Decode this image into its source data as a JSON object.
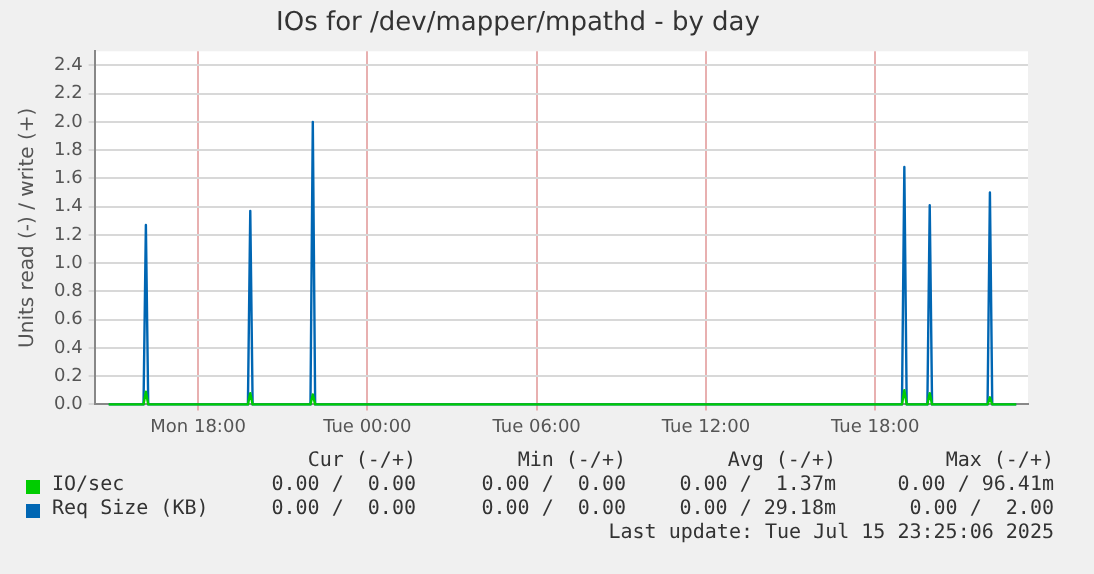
{
  "chart_data": {
    "type": "line",
    "title": "IOs for /dev/mapper/mpathd - by day",
    "ylabel": "Units read (-) / write (+)",
    "x": [
      "2025-07-14T14:50",
      "2025-07-14T16:04",
      "2025-07-14T16:09",
      "2025-07-14T16:14",
      "2025-07-14T19:46",
      "2025-07-14T19:51",
      "2025-07-14T19:56",
      "2025-07-14T21:59",
      "2025-07-14T22:04",
      "2025-07-14T22:09",
      "2025-07-15T18:57",
      "2025-07-15T19:02",
      "2025-07-15T19:07",
      "2025-07-15T19:51",
      "2025-07-15T19:56",
      "2025-07-15T20:01",
      "2025-07-15T21:59",
      "2025-07-15T22:04",
      "2025-07-15T22:09",
      "2025-07-15T23:00"
    ],
    "series": [
      {
        "name": "IO/sec",
        "color": "#00cc00",
        "values": [
          0,
          0,
          0.09,
          0,
          0,
          0.08,
          0,
          0,
          0.07,
          0,
          0,
          0.1,
          0,
          0,
          0.08,
          0,
          0,
          0.05,
          0,
          0
        ]
      },
      {
        "name": "Req Size (KB)",
        "color": "#0066b3",
        "values": [
          0,
          0,
          1.27,
          0,
          0,
          1.37,
          0,
          0,
          2.0,
          0,
          0,
          1.68,
          0,
          0,
          1.41,
          0,
          0,
          1.5,
          0,
          0
        ]
      }
    ],
    "xlim": [
      "2025-07-14T14:20",
      "2025-07-15T23:25"
    ],
    "xticks": [
      {
        "value": "2025-07-14T18:00",
        "label": "Mon 18:00"
      },
      {
        "value": "2025-07-15T00:00",
        "label": "Tue 00:00"
      },
      {
        "value": "2025-07-15T06:00",
        "label": "Tue 06:00"
      },
      {
        "value": "2025-07-15T12:00",
        "label": "Tue 12:00"
      },
      {
        "value": "2025-07-15T18:00",
        "label": "Tue 18:00"
      }
    ],
    "ylim": [
      0,
      2.5
    ],
    "yticks": [
      {
        "value": 0,
        "label": "0.0"
      },
      {
        "value": 0.2,
        "label": "0.2"
      },
      {
        "value": 0.4,
        "label": "0.4"
      },
      {
        "value": 0.6,
        "label": "0.6"
      },
      {
        "value": 0.8,
        "label": "0.8"
      },
      {
        "value": 1.0,
        "label": "1.0"
      },
      {
        "value": 1.2,
        "label": "1.2"
      },
      {
        "value": 1.4,
        "label": "1.4"
      },
      {
        "value": 1.6,
        "label": "1.6"
      },
      {
        "value": 1.8,
        "label": "1.8"
      },
      {
        "value": 2.0,
        "label": "2.0"
      },
      {
        "value": 2.2,
        "label": "2.2"
      },
      {
        "value": 2.4,
        "label": "2.4"
      }
    ],
    "grid": true,
    "legend": "bottom left",
    "marker": "none",
    "line_style": "solid",
    "annotations": [
      "Cur (-/+)",
      "Min (-/+)",
      "Avg (-/+)",
      "Max (-/+)",
      "0.00 /  0.00",
      "0.00 /  0.00",
      "0.00 /  1.37m",
      "0.00 / 96.41m",
      "0.00 /  0.00",
      "0.00 /  0.00",
      "0.00 / 29.18m",
      "0.00 /  2.00",
      "Last update: Tue Jul 15 23:25:06 2025"
    ]
  }
}
